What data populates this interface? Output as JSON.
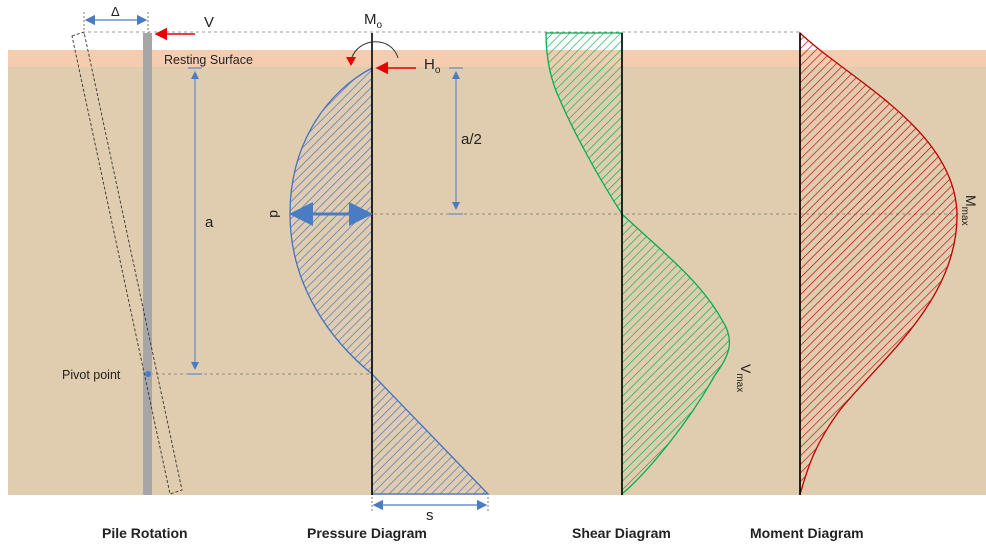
{
  "labels": {
    "delta": "Δ",
    "v": "V",
    "m_main": "M",
    "m_sub": "o",
    "h_main": "H",
    "h_sub": "o",
    "resting_surface": "Resting Surface",
    "a_half": "a/2",
    "a": "a",
    "d": "d",
    "pivot_point": "Pivot point",
    "s": "s",
    "vmax_main": "V",
    "vmax_sub": "max",
    "mmax_main": "M",
    "mmax_sub": "max"
  },
  "captions": {
    "pile_rotation": "Pile Rotation",
    "pressure_diagram": "Pressure Diagram",
    "shear_diagram": "Shear Diagram",
    "moment_diagram": "Moment Diagram"
  },
  "colors": {
    "soil": "#e0ccaf",
    "surface_band": "#f4cdb0",
    "pressure": "#4472c4",
    "shear": "#00b050",
    "moment": "#c00000",
    "arrow_red": "#e60000",
    "dim_blue": "#4a7cc4",
    "pile": "#a6a6a6"
  }
}
